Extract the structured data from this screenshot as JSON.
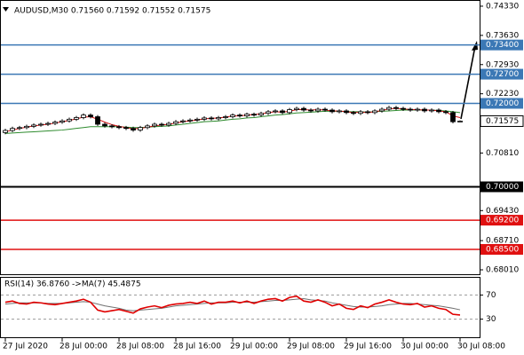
{
  "chart_data": [
    {
      "type": "candlestick",
      "title": "AUDUSD,M30  0.71560 0.71592 0.71552 0.71575",
      "categories": [
        "27 Jul 2020",
        null,
        null,
        null,
        null,
        null,
        null,
        null,
        "28 Jul 00:00",
        null,
        null,
        null,
        null,
        null,
        null,
        null,
        "28 Jul 08:00",
        null,
        null,
        null,
        null,
        null,
        null,
        null,
        "28 Jul 16:00",
        null,
        null,
        null,
        null,
        null,
        null,
        null,
        "29 Jul 00:00",
        null,
        null,
        null,
        null,
        null,
        null,
        null,
        "29 Jul 08:00",
        null,
        null,
        null,
        null,
        null,
        null,
        null,
        "29 Jul 16:00",
        null,
        null,
        null,
        null,
        null,
        null,
        null,
        "30 Jul 00:00",
        null,
        null,
        null,
        null,
        null,
        null,
        null,
        "30 Jul 08:00"
      ],
      "open": [
        0.713,
        0.7135,
        0.714,
        0.7142,
        0.7145,
        0.7148,
        0.715,
        0.7152,
        0.7155,
        0.7158,
        0.7162,
        0.7166,
        0.7172,
        0.7168,
        0.715,
        0.7146,
        0.7144,
        0.7142,
        0.714,
        0.7136,
        0.7142,
        0.7146,
        0.715,
        0.7148,
        0.7152,
        0.7156,
        0.7158,
        0.716,
        0.7162,
        0.7165,
        0.7163,
        0.7166,
        0.7168,
        0.7172,
        0.717,
        0.7174,
        0.7172,
        0.7176,
        0.718,
        0.7182,
        0.7178,
        0.7185,
        0.7188,
        0.7184,
        0.7182,
        0.7186,
        0.7184,
        0.718,
        0.7182,
        0.7178,
        0.7176,
        0.718,
        0.7178,
        0.7182,
        0.7186,
        0.719,
        0.7188,
        0.7186,
        0.7184,
        0.7186,
        0.7182,
        0.7184,
        0.718,
        0.7178,
        0.7156
      ],
      "high": [
        0.7139,
        0.7144,
        0.7146,
        0.7149,
        0.7152,
        0.7154,
        0.7156,
        0.7159,
        0.7162,
        0.7166,
        0.717,
        0.7176,
        0.7176,
        0.7172,
        0.7154,
        0.715,
        0.7148,
        0.7146,
        0.7144,
        0.7146,
        0.715,
        0.7154,
        0.7154,
        0.7156,
        0.716,
        0.7162,
        0.7164,
        0.7166,
        0.7169,
        0.7169,
        0.717,
        0.7172,
        0.7176,
        0.7176,
        0.7178,
        0.7178,
        0.718,
        0.7184,
        0.7186,
        0.7186,
        0.7189,
        0.7192,
        0.7192,
        0.7188,
        0.719,
        0.719,
        0.7188,
        0.7186,
        0.7186,
        0.7182,
        0.7184,
        0.7184,
        0.7186,
        0.719,
        0.7194,
        0.7194,
        0.7192,
        0.719,
        0.719,
        0.719,
        0.7188,
        0.7188,
        0.7184,
        0.7182,
        0.71592
      ],
      "low": [
        0.7126,
        0.7131,
        0.7136,
        0.7138,
        0.7141,
        0.7144,
        0.7146,
        0.7148,
        0.7151,
        0.7154,
        0.7158,
        0.7162,
        0.7164,
        0.7146,
        0.7142,
        0.714,
        0.7138,
        0.7136,
        0.7132,
        0.7132,
        0.7138,
        0.7142,
        0.7144,
        0.7144,
        0.7148,
        0.7152,
        0.7154,
        0.7156,
        0.7158,
        0.7159,
        0.7159,
        0.7162,
        0.7164,
        0.7166,
        0.7166,
        0.7168,
        0.7168,
        0.7172,
        0.7176,
        0.7174,
        0.7174,
        0.7181,
        0.718,
        0.7178,
        0.7178,
        0.718,
        0.7176,
        0.7176,
        0.7174,
        0.7172,
        0.7172,
        0.7174,
        0.7174,
        0.7178,
        0.7182,
        0.7184,
        0.7182,
        0.718,
        0.718,
        0.7178,
        0.7178,
        0.7176,
        0.7174,
        0.7152,
        0.71552
      ],
      "close": [
        0.7135,
        0.714,
        0.7142,
        0.7145,
        0.7148,
        0.715,
        0.7152,
        0.7155,
        0.7158,
        0.7162,
        0.7166,
        0.7172,
        0.7168,
        0.715,
        0.7146,
        0.7144,
        0.7142,
        0.714,
        0.7136,
        0.7142,
        0.7146,
        0.715,
        0.7148,
        0.7152,
        0.7156,
        0.7158,
        0.716,
        0.7162,
        0.7165,
        0.7163,
        0.7166,
        0.7168,
        0.7172,
        0.717,
        0.7174,
        0.7172,
        0.7176,
        0.718,
        0.7182,
        0.7178,
        0.7185,
        0.7188,
        0.7184,
        0.7182,
        0.7186,
        0.7184,
        0.718,
        0.7182,
        0.7178,
        0.7176,
        0.718,
        0.7178,
        0.7182,
        0.7186,
        0.719,
        0.7188,
        0.7186,
        0.7184,
        0.7186,
        0.7182,
        0.7184,
        0.718,
        0.7178,
        0.7156,
        0.71575
      ],
      "up_color": "#ffffff",
      "down_color": "#000000",
      "candle_edge": "#000000",
      "overlays": [
        {
          "color": "#2e8b2e",
          "values": [
            0.7128,
            0.7129,
            0.713,
            0.7131,
            0.7132,
            0.7133,
            0.7134,
            0.7135,
            0.7136,
            0.7138,
            0.714,
            0.7142,
            0.7144,
            0.7144,
            0.7144,
            0.7144,
            0.7144,
            0.7143,
            0.7142,
            0.7142,
            0.7143,
            0.7144,
            0.7145,
            0.7146,
            0.7148,
            0.715,
            0.7152,
            0.7154,
            0.7156,
            0.7157,
            0.7158,
            0.716,
            0.7162,
            0.7163,
            0.7165,
            0.7166,
            0.7168,
            0.717,
            0.7172,
            0.7173,
            0.7175,
            0.7177,
            0.7178,
            0.7179,
            0.718,
            0.7181,
            0.7181,
            0.7181,
            0.718,
            0.718,
            0.718,
            0.7179,
            0.718,
            0.7181,
            0.7182,
            0.7183,
            0.7184,
            0.7184,
            0.7184,
            0.7184,
            0.7184,
            0.7183,
            0.7182,
            0.718,
            0.7178
          ]
        },
        {
          "color": "#d01010",
          "values": [
            0.7132,
            0.7136,
            0.714,
            0.7143,
            0.7146,
            0.7148,
            0.715,
            0.7153,
            0.7156,
            0.7159,
            0.7163,
            0.7167,
            0.7168,
            0.7162,
            0.7155,
            0.7149,
            0.7145,
            0.7142,
            0.7139,
            0.714,
            0.7143,
            0.7146,
            0.7148,
            0.715,
            0.7153,
            0.7156,
            0.7158,
            0.716,
            0.7163,
            0.7164,
            0.7165,
            0.7167,
            0.717,
            0.717,
            0.7172,
            0.7173,
            0.7175,
            0.7178,
            0.718,
            0.7179,
            0.7181,
            0.7185,
            0.7185,
            0.7184,
            0.7185,
            0.7184,
            0.7182,
            0.7182,
            0.718,
            0.7178,
            0.7179,
            0.7178,
            0.718,
            0.7183,
            0.7187,
            0.7188,
            0.7187,
            0.7185,
            0.7185,
            0.7184,
            0.7184,
            0.7182,
            0.718,
            0.717,
            0.7166
          ]
        }
      ],
      "ylim": [
        0.67904,
        0.74457
      ],
      "yticks": [
        {
          "value": 0.7433,
          "label": "0.74330"
        },
        {
          "value": 0.7363,
          "label": "0.73630"
        },
        {
          "value": 0.7293,
          "label": "0.72930"
        },
        {
          "value": 0.7223,
          "label": "0.72230"
        },
        {
          "value": 0.7081,
          "label": "0.70810"
        },
        {
          "value": 0.6943,
          "label": "0.69430"
        },
        {
          "value": 0.6871,
          "label": "0.68710"
        },
        {
          "value": 0.6801,
          "label": "0.68010"
        }
      ],
      "levels": [
        {
          "value": 0.734,
          "label": "0.73400",
          "color": "#3b78b5"
        },
        {
          "value": 0.727,
          "label": "0.72700",
          "color": "#3b78b5"
        },
        {
          "value": 0.72,
          "label": "0.72000",
          "color": "#3b78b5"
        },
        {
          "value": 0.7,
          "label": "0.70000",
          "color": "#000000"
        },
        {
          "value": 0.692,
          "label": "0.69200",
          "color": "#e01010"
        },
        {
          "value": 0.685,
          "label": "0.68500",
          "color": "#e01010"
        }
      ],
      "last_price": {
        "value": 0.71575,
        "label": "0.71575"
      }
    },
    {
      "type": "line",
      "title": "RSI(14) 36.8760  ->MA(7) 45.4875",
      "ylim": [
        0,
        100
      ],
      "yticks": [
        70,
        30
      ],
      "series": [
        {
          "color": "#e00000",
          "values": [
            58,
            60,
            56,
            55,
            58,
            57,
            55,
            54,
            56,
            58,
            60,
            63,
            58,
            45,
            42,
            44,
            46,
            43,
            40,
            47,
            50,
            52,
            49,
            53,
            55,
            56,
            58,
            56,
            60,
            55,
            58,
            58,
            60,
            57,
            60,
            56,
            60,
            63,
            64,
            60,
            66,
            68,
            60,
            58,
            62,
            58,
            52,
            55,
            48,
            46,
            52,
            49,
            55,
            58,
            62,
            58,
            55,
            54,
            56,
            50,
            52,
            48,
            46,
            38,
            36.876
          ]
        },
        {
          "color": "#707070",
          "values": [
            55,
            56,
            57,
            57,
            57,
            57,
            56,
            56,
            56,
            57,
            58,
            59,
            58,
            55,
            52,
            50,
            48,
            45,
            44,
            45,
            46,
            47,
            48,
            50,
            52,
            53,
            54,
            55,
            56,
            57,
            57,
            57,
            58,
            58,
            58,
            58,
            59,
            60,
            61,
            61,
            62,
            63,
            64,
            62,
            61,
            60,
            57,
            55,
            53,
            51,
            50,
            50,
            51,
            52,
            54,
            55,
            56,
            56,
            55,
            54,
            53,
            52,
            50,
            48,
            45.4875
          ]
        }
      ]
    }
  ]
}
